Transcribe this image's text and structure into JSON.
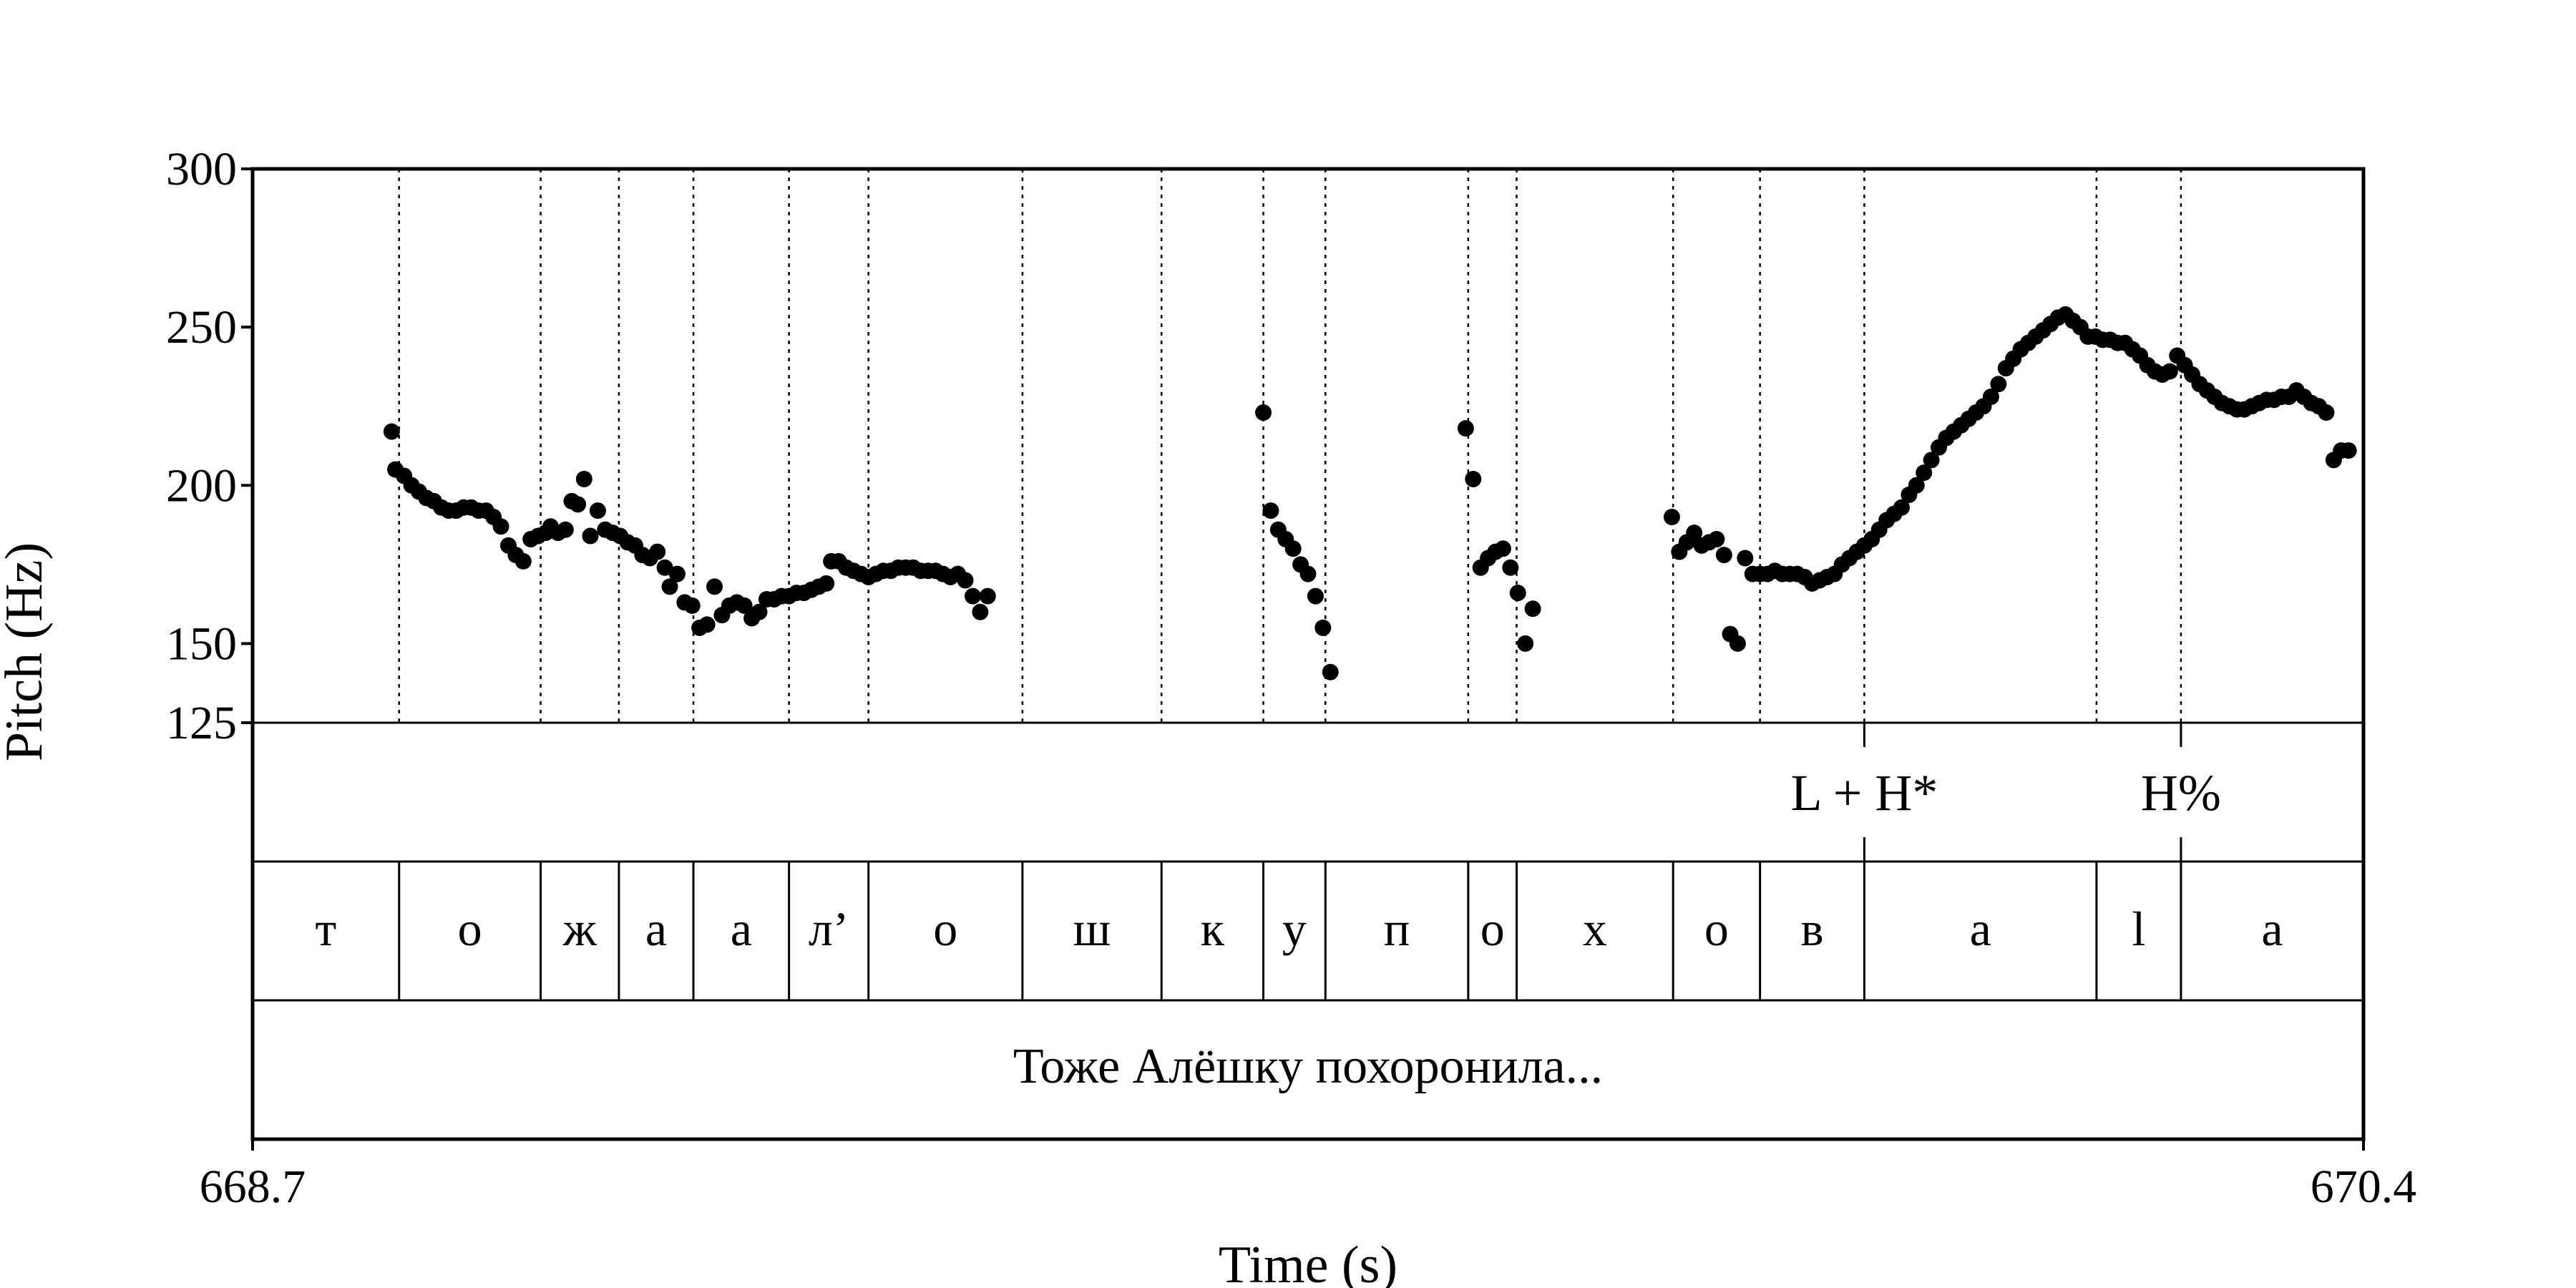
{
  "chart_data": {
    "type": "scatter",
    "xlabel": "Time (s)",
    "ylabel": "Pitch (Hz)",
    "xlim": [
      668.7,
      670.4
    ],
    "ylim": [
      125,
      300
    ],
    "x_ticks": [
      "668.7",
      "670.4"
    ],
    "y_ticks": [
      {
        "value": 300,
        "label": "300"
      },
      {
        "value": 250,
        "label": "250"
      },
      {
        "value": 200,
        "label": "200"
      },
      {
        "value": 150,
        "label": "150"
      },
      {
        "value": 125,
        "label": "125"
      }
    ],
    "boundaries": [
      668.818,
      668.932,
      668.995,
      669.055,
      669.132,
      669.196,
      669.32,
      669.432,
      669.514,
      669.564,
      669.679,
      669.718,
      669.844,
      669.914,
      669.998,
      670.185,
      670.253
    ],
    "segments": [
      {
        "start": 668.7,
        "end": 668.818,
        "label": "т"
      },
      {
        "start": 668.818,
        "end": 668.932,
        "label": "о"
      },
      {
        "start": 668.932,
        "end": 668.995,
        "label": "ж"
      },
      {
        "start": 668.995,
        "end": 669.055,
        "label": "а"
      },
      {
        "start": 669.055,
        "end": 669.132,
        "label": "а"
      },
      {
        "start": 669.132,
        "end": 669.196,
        "label": "л’"
      },
      {
        "start": 669.196,
        "end": 669.32,
        "label": "о"
      },
      {
        "start": 669.32,
        "end": 669.432,
        "label": "ш"
      },
      {
        "start": 669.432,
        "end": 669.514,
        "label": "к"
      },
      {
        "start": 669.514,
        "end": 669.564,
        "label": "у"
      },
      {
        "start": 669.564,
        "end": 669.679,
        "label": "п"
      },
      {
        "start": 669.679,
        "end": 669.718,
        "label": "о"
      },
      {
        "start": 669.718,
        "end": 669.844,
        "label": "х"
      },
      {
        "start": 669.844,
        "end": 669.914,
        "label": "о"
      },
      {
        "start": 669.914,
        "end": 669.998,
        "label": "в"
      },
      {
        "start": 669.998,
        "end": 670.185,
        "label": "а"
      },
      {
        "start": 670.185,
        "end": 670.253,
        "label": "l"
      },
      {
        "start": 670.253,
        "end": 670.4,
        "label": "а"
      }
    ],
    "tones": [
      {
        "time": 669.998,
        "label": "L + H*"
      },
      {
        "time": 670.253,
        "label": "H%"
      }
    ],
    "sentence": "Тоже Алёшку похоронила...",
    "pitch_points": [
      [
        668.812,
        217
      ],
      [
        668.815,
        205
      ],
      [
        668.822,
        203
      ],
      [
        668.828,
        200
      ],
      [
        668.834,
        198
      ],
      [
        668.84,
        196
      ],
      [
        668.846,
        195
      ],
      [
        668.852,
        193
      ],
      [
        668.858,
        192
      ],
      [
        668.864,
        192
      ],
      [
        668.87,
        193
      ],
      [
        668.876,
        193
      ],
      [
        668.882,
        192
      ],
      [
        668.888,
        192
      ],
      [
        668.894,
        190
      ],
      [
        668.9,
        187
      ],
      [
        668.906,
        181
      ],
      [
        668.912,
        178
      ],
      [
        668.918,
        176
      ],
      [
        668.924,
        183
      ],
      [
        668.93,
        184
      ],
      [
        668.936,
        185
      ],
      [
        668.94,
        187
      ],
      [
        668.946,
        185
      ],
      [
        668.952,
        186
      ],
      [
        668.957,
        195
      ],
      [
        668.962,
        194
      ],
      [
        668.967,
        202
      ],
      [
        668.972,
        184
      ],
      [
        668.978,
        192
      ],
      [
        668.984,
        186
      ],
      [
        668.99,
        185
      ],
      [
        668.996,
        184
      ],
      [
        669.002,
        182
      ],
      [
        669.008,
        181
      ],
      [
        669.014,
        178
      ],
      [
        669.02,
        177
      ],
      [
        669.026,
        179
      ],
      [
        669.032,
        174
      ],
      [
        669.036,
        168
      ],
      [
        669.042,
        172
      ],
      [
        669.048,
        163
      ],
      [
        669.054,
        162
      ],
      [
        669.06,
        155
      ],
      [
        669.066,
        156
      ],
      [
        669.072,
        168
      ],
      [
        669.078,
        159
      ],
      [
        669.084,
        162
      ],
      [
        669.09,
        163
      ],
      [
        669.096,
        162
      ],
      [
        669.102,
        158
      ],
      [
        669.108,
        160
      ],
      [
        669.114,
        164
      ],
      [
        669.12,
        164
      ],
      [
        669.126,
        165
      ],
      [
        669.132,
        165
      ],
      [
        669.138,
        166
      ],
      [
        669.144,
        166
      ],
      [
        669.15,
        167
      ],
      [
        669.156,
        168
      ],
      [
        669.162,
        169
      ],
      [
        669.166,
        176
      ],
      [
        669.172,
        176
      ],
      [
        669.178,
        174
      ],
      [
        669.184,
        173
      ],
      [
        669.19,
        172
      ],
      [
        669.196,
        171
      ],
      [
        669.202,
        172
      ],
      [
        669.208,
        173
      ],
      [
        669.214,
        173
      ],
      [
        669.22,
        174
      ],
      [
        669.226,
        174
      ],
      [
        669.232,
        174
      ],
      [
        669.238,
        173
      ],
      [
        669.244,
        173
      ],
      [
        669.25,
        173
      ],
      [
        669.256,
        172
      ],
      [
        669.262,
        171
      ],
      [
        669.268,
        172
      ],
      [
        669.274,
        170
      ],
      [
        669.28,
        165
      ],
      [
        669.286,
        160
      ],
      [
        669.292,
        165
      ],
      [
        669.514,
        223
      ],
      [
        669.52,
        192
      ],
      [
        669.526,
        186
      ],
      [
        669.532,
        183
      ],
      [
        669.538,
        180
      ],
      [
        669.544,
        175
      ],
      [
        669.55,
        172
      ],
      [
        669.556,
        165
      ],
      [
        669.562,
        155
      ],
      [
        669.568,
        141
      ],
      [
        669.677,
        218
      ],
      [
        669.683,
        202
      ],
      [
        669.689,
        174
      ],
      [
        669.695,
        177
      ],
      [
        669.701,
        179
      ],
      [
        669.707,
        180
      ],
      [
        669.713,
        174
      ],
      [
        669.719,
        166
      ],
      [
        669.725,
        150
      ],
      [
        669.731,
        161
      ],
      [
        669.843,
        190
      ],
      [
        669.849,
        179
      ],
      [
        669.855,
        182
      ],
      [
        669.861,
        185
      ],
      [
        669.867,
        181
      ],
      [
        669.873,
        182
      ],
      [
        669.879,
        183
      ],
      [
        669.885,
        178
      ],
      [
        669.89,
        153
      ],
      [
        669.896,
        150
      ],
      [
        669.902,
        177
      ],
      [
        669.908,
        172
      ],
      [
        669.914,
        172
      ],
      [
        669.92,
        172
      ],
      [
        669.926,
        173
      ],
      [
        669.932,
        172
      ],
      [
        669.938,
        172
      ],
      [
        669.944,
        172
      ],
      [
        669.95,
        171
      ],
      [
        669.956,
        169
      ],
      [
        669.962,
        170
      ],
      [
        669.968,
        171
      ],
      [
        669.974,
        172
      ],
      [
        669.98,
        175
      ],
      [
        669.986,
        177
      ],
      [
        669.992,
        179
      ],
      [
        669.998,
        181
      ],
      [
        670.004,
        183
      ],
      [
        670.01,
        186
      ],
      [
        670.016,
        189
      ],
      [
        670.022,
        191
      ],
      [
        670.028,
        193
      ],
      [
        670.034,
        197
      ],
      [
        670.04,
        200
      ],
      [
        670.046,
        204
      ],
      [
        670.052,
        208
      ],
      [
        670.058,
        212
      ],
      [
        670.064,
        215
      ],
      [
        670.07,
        217
      ],
      [
        670.076,
        219
      ],
      [
        670.082,
        221
      ],
      [
        670.088,
        223
      ],
      [
        670.094,
        225
      ],
      [
        670.1,
        228
      ],
      [
        670.106,
        232
      ],
      [
        670.112,
        237
      ],
      [
        670.118,
        240
      ],
      [
        670.124,
        243
      ],
      [
        670.13,
        245
      ],
      [
        670.136,
        247
      ],
      [
        670.142,
        249
      ],
      [
        670.148,
        251
      ],
      [
        670.154,
        253
      ],
      [
        670.16,
        254
      ],
      [
        670.166,
        252
      ],
      [
        670.172,
        250
      ],
      [
        670.178,
        247
      ],
      [
        670.184,
        247
      ],
      [
        670.19,
        246
      ],
      [
        670.196,
        246
      ],
      [
        670.202,
        245
      ],
      [
        670.208,
        245
      ],
      [
        670.214,
        243
      ],
      [
        670.22,
        241
      ],
      [
        670.226,
        238
      ],
      [
        670.232,
        236
      ],
      [
        670.238,
        235
      ],
      [
        670.244,
        236
      ],
      [
        670.25,
        241
      ],
      [
        670.256,
        238
      ],
      [
        670.262,
        235
      ],
      [
        670.268,
        232
      ],
      [
        670.274,
        230
      ],
      [
        670.28,
        228
      ],
      [
        670.286,
        226
      ],
      [
        670.292,
        225
      ],
      [
        670.298,
        224
      ],
      [
        670.304,
        224
      ],
      [
        670.31,
        225
      ],
      [
        670.316,
        226
      ],
      [
        670.322,
        227
      ],
      [
        670.328,
        227
      ],
      [
        670.334,
        228
      ],
      [
        670.34,
        228
      ],
      [
        670.346,
        230
      ],
      [
        670.352,
        228
      ],
      [
        670.358,
        226
      ],
      [
        670.364,
        225
      ],
      [
        670.37,
        223
      ],
      [
        670.376,
        208
      ],
      [
        670.382,
        211
      ],
      [
        670.388,
        211
      ]
    ]
  }
}
